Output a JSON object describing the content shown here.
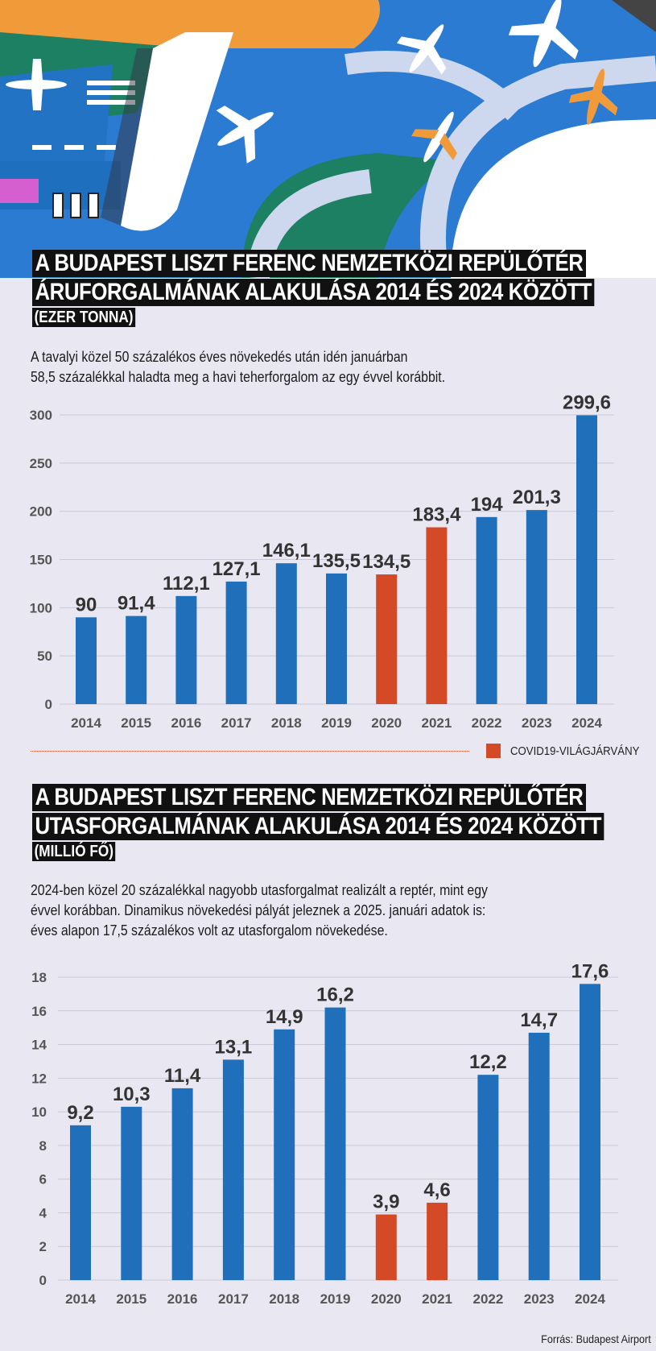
{
  "colors": {
    "normal": "#1f6fba",
    "covid": "#d44a27",
    "grid": "#c9c8d6",
    "text": "#333333"
  },
  "cargo": {
    "title_line1": "A BUDAPEST LISZT FERENC NEMZETKÖZI REPÜLŐTÉR",
    "title_line2": "ÁRUFORGALMÁNAK ALAKULÁSA 2014 ÉS 2024  KÖZÖTT",
    "unit": "(EZER TONNA)",
    "lead_line1": "A tavalyi közel 50 százalékos éves növekedés után idén januárban",
    "lead_line2": "58,5 százalékkal haladta meg a havi teherforgalom az egy évvel korábbit."
  },
  "passenger": {
    "title_line1": "A BUDAPEST LISZT FERENC NEMZETKÖZI REPÜLŐTÉR",
    "title_line2": "UTASFORGALMÁNAK ALAKULÁSA 2014 ÉS 2024 KÖZÖTT",
    "unit": "(MILLIÓ FŐ)",
    "lead_line1": "2024-ben közel 20 százalékkal nagyobb utasforgalmat realizált a reptér, mint egy",
    "lead_line2": "évvel korábban. Dinamikus növekedési pályát jeleznek a 2025. januári adatok is:",
    "lead_line3": "éves alapon 17,5 százalékos volt az utasforgalom növekedése."
  },
  "legend": {
    "label": "COVID19-VILÁGJÁRVÁNY"
  },
  "source": "Forrás: Budapest Airport",
  "chart_data": [
    {
      "type": "bar",
      "categories": [
        "2014",
        "2015",
        "2016",
        "2017",
        "2018",
        "2019",
        "2020",
        "2021",
        "2022",
        "2023",
        "2024"
      ],
      "values": [
        90,
        91.4,
        112.1,
        127.1,
        146.1,
        135.5,
        134.5,
        183.4,
        194,
        201.3,
        299.6
      ],
      "value_labels": [
        "90",
        "91,4",
        "112,1",
        "127,1",
        "146,1",
        "135,5",
        "134,5",
        "183,4",
        "194",
        "201,3",
        "299,6"
      ],
      "highlight": [
        false,
        false,
        false,
        false,
        false,
        false,
        true,
        true,
        false,
        false,
        false
      ],
      "yticks": [
        0,
        50,
        100,
        150,
        200,
        250,
        300
      ],
      "ylim": [
        0,
        300
      ],
      "grid": true
    },
    {
      "type": "bar",
      "categories": [
        "2014",
        "2015",
        "2016",
        "2017",
        "2018",
        "2019",
        "2020",
        "2021",
        "2022",
        "2023",
        "2024"
      ],
      "values": [
        9.2,
        10.3,
        11.4,
        13.1,
        14.9,
        16.2,
        3.9,
        4.6,
        12.2,
        14.7,
        17.6
      ],
      "value_labels": [
        "9,2",
        "10,3",
        "11,4",
        "13,1",
        "14,9",
        "16,2",
        "3,9",
        "4,6",
        "12,2",
        "14,7",
        "17,6"
      ],
      "highlight": [
        false,
        false,
        false,
        false,
        false,
        false,
        true,
        true,
        false,
        false,
        false
      ],
      "yticks": [
        0,
        2,
        4,
        6,
        8,
        10,
        12,
        14,
        16,
        18
      ],
      "ylim": [
        0,
        18
      ],
      "grid": true
    }
  ]
}
